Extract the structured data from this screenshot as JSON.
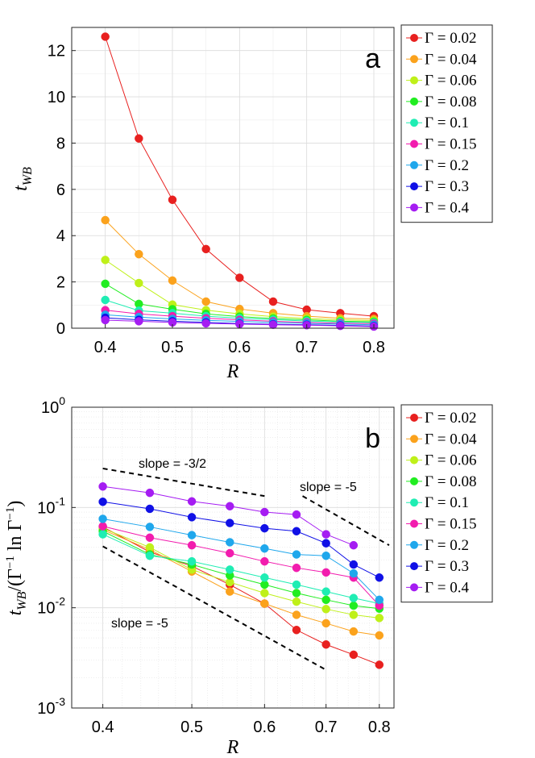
{
  "chart_data": [
    {
      "type": "line",
      "panel_label": "a",
      "ylabel": "t_{WB}",
      "ylabel_main": "t",
      "ylabel_sub": "WB",
      "xlabel": "R",
      "xlim": [
        0.35,
        0.83
      ],
      "ylim": [
        0,
        13
      ],
      "yscale": "linear",
      "grid": true,
      "legend_position": "outside-right",
      "x_ticks": [
        0.4,
        0.5,
        0.6,
        0.7,
        0.8
      ],
      "x_tick_labels": [
        "0.4",
        "0.5",
        "0.6",
        "0.7",
        "0.8"
      ],
      "y_ticks": [
        0,
        2,
        4,
        6,
        8,
        10,
        12
      ],
      "y_tick_labels": [
        "0",
        "2",
        "4",
        "6",
        "8",
        "10",
        "12"
      ],
      "x": [
        0.4,
        0.45,
        0.5,
        0.55,
        0.6,
        0.65,
        0.7,
        0.75,
        0.8
      ],
      "series": [
        {
          "name": "Γ = 0.02",
          "color": "#e8201f",
          "values": [
            12.6,
            8.2,
            5.55,
            3.42,
            2.18,
            1.15,
            0.8,
            0.65,
            0.52
          ]
        },
        {
          "name": "Γ = 0.04",
          "color": "#fba21c",
          "values": [
            4.67,
            3.2,
            2.06,
            1.15,
            0.83,
            0.65,
            0.52,
            0.43,
            0.4
          ]
        },
        {
          "name": "Γ = 0.06",
          "color": "#bff019",
          "values": [
            2.95,
            1.95,
            1.02,
            0.78,
            0.62,
            0.5,
            0.42,
            0.36,
            0.33
          ]
        },
        {
          "name": "Γ = 0.08",
          "color": "#21ed21",
          "values": [
            1.92,
            1.05,
            0.82,
            0.62,
            0.5,
            0.42,
            0.36,
            0.3,
            0.28
          ]
        },
        {
          "name": "Γ = 0.1",
          "color": "#1fedb3",
          "values": [
            1.22,
            0.76,
            0.65,
            0.52,
            0.43,
            0.37,
            0.31,
            0.27,
            0.24
          ]
        },
        {
          "name": "Γ = 0.15",
          "color": "#f21cae",
          "values": [
            0.78,
            0.62,
            0.52,
            0.43,
            0.36,
            0.3,
            0.25,
            0.22,
            0.2
          ]
        },
        {
          "name": "Γ = 0.2",
          "color": "#1fa7ec",
          "values": [
            0.58,
            0.48,
            0.4,
            0.34,
            0.29,
            0.25,
            0.21,
            0.18,
            0.15
          ]
        },
        {
          "name": "Γ = 0.3",
          "color": "#1010e6",
          "values": [
            0.45,
            0.36,
            0.3,
            0.25,
            0.2,
            0.17,
            0.15,
            0.12,
            0.09
          ]
        },
        {
          "name": "Γ = 0.4",
          "color": "#a51cf2",
          "values": [
            0.35,
            0.3,
            0.25,
            0.21,
            0.18,
            0.15,
            0.13,
            0.1,
            0.07
          ]
        }
      ]
    },
    {
      "type": "line",
      "panel_label": "b",
      "ylabel": "t_{WB}/(Γ^{-1} ln Γ^{-1})",
      "ylabel_main": "t",
      "ylabel_sub": "WB",
      "ylabel_rest_1": "/(Γ",
      "ylabel_sup_1": "−1",
      "ylabel_rest_2": " ln Γ",
      "ylabel_sup_2": "−1",
      "ylabel_rest_3": ")",
      "xlabel": "R",
      "xlim": [
        0.37,
        0.83
      ],
      "ylim": [
        0.001,
        1
      ],
      "xscale": "log",
      "yscale": "log",
      "grid": true,
      "legend_position": "outside-right",
      "x_ticks": [
        0.4,
        0.5,
        0.6,
        0.7,
        0.8
      ],
      "x_tick_labels": [
        "0.4",
        "0.5",
        "0.6",
        "0.7",
        "0.8"
      ],
      "y_ticks": [
        0.001,
        0.01,
        0.1,
        1
      ],
      "y_tick_base": [
        "10",
        "10",
        "10",
        "10"
      ],
      "y_tick_exp": [
        "-3",
        "-2",
        "-1",
        "0"
      ],
      "annotations": [
        {
          "text": "slope = -3/2",
          "line_x": [
            0.4,
            0.6
          ],
          "line_y": [
            0.245,
            0.13
          ]
        },
        {
          "text": "slope = -5",
          "line_x": [
            0.66,
            0.82
          ],
          "line_y": [
            0.13,
            0.042
          ]
        },
        {
          "text": "slope = -5",
          "line_x": [
            0.4,
            0.7
          ],
          "line_y": [
            0.041,
            0.0024
          ]
        }
      ],
      "x": [
        0.4,
        0.45,
        0.5,
        0.55,
        0.6,
        0.65,
        0.7,
        0.75,
        0.8
      ],
      "series": [
        {
          "name": "Γ = 0.02",
          "color": "#e8201f",
          "values": [
            0.064,
            0.036,
            0.026,
            0.017,
            0.011,
            0.006,
            0.0043,
            0.0034,
            0.0027
          ]
        },
        {
          "name": "Γ = 0.04",
          "color": "#fba21c",
          "values": [
            0.06,
            0.038,
            0.023,
            0.0145,
            0.011,
            0.0085,
            0.007,
            0.0058,
            0.0053
          ]
        },
        {
          "name": "Γ = 0.06",
          "color": "#bff019",
          "values": [
            0.062,
            0.04,
            0.024,
            0.018,
            0.014,
            0.0115,
            0.0097,
            0.0085,
            0.0079
          ]
        },
        {
          "name": "Γ = 0.08",
          "color": "#21ed21",
          "values": [
            0.058,
            0.034,
            0.027,
            0.021,
            0.017,
            0.014,
            0.012,
            0.0105,
            0.0098
          ]
        },
        {
          "name": "Γ = 0.1",
          "color": "#1fedb3",
          "values": [
            0.054,
            0.033,
            0.029,
            0.024,
            0.02,
            0.017,
            0.0145,
            0.0125,
            0.011
          ]
        },
        {
          "name": "Γ = 0.15",
          "color": "#f21cae",
          "values": [
            0.065,
            0.05,
            0.042,
            0.035,
            0.029,
            0.025,
            0.0225,
            0.02,
            0.0105
          ]
        },
        {
          "name": "Γ = 0.2",
          "color": "#1fa7ec",
          "values": [
            0.077,
            0.064,
            0.053,
            0.045,
            0.039,
            0.034,
            0.033,
            0.022,
            0.012
          ]
        },
        {
          "name": "Γ = 0.3",
          "color": "#1010e6",
          "values": [
            0.114,
            0.097,
            0.08,
            0.07,
            0.062,
            0.058,
            0.044,
            0.027,
            0.02
          ]
        },
        {
          "name": "Γ = 0.4",
          "color": "#a51cf2",
          "values": [
            0.162,
            0.14,
            0.115,
            0.103,
            0.09,
            0.085,
            0.054,
            0.042,
            null
          ]
        }
      ]
    }
  ]
}
